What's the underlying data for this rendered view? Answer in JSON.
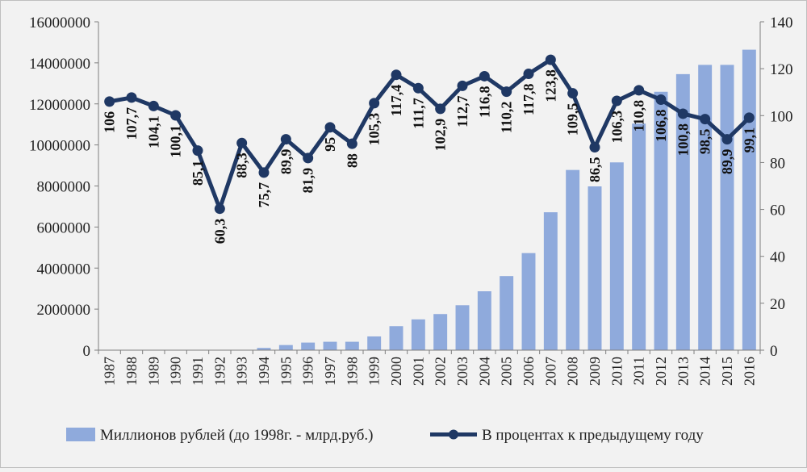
{
  "chart_data": {
    "type": "bar+line",
    "categories": [
      "1987",
      "1988",
      "1989",
      "1990",
      "1991",
      "1992",
      "1993",
      "1994",
      "1995",
      "1996",
      "1997",
      "1998",
      "1999",
      "2000",
      "2001",
      "2002",
      "2003",
      "2004",
      "2005",
      "2006",
      "2007",
      "2008",
      "2009",
      "2010",
      "2011",
      "2012",
      "2013",
      "2014",
      "2015",
      "2016"
    ],
    "series": [
      {
        "name": "Миллионов рублей (до 1998г. - млрд.руб.)",
        "type": "bar",
        "axis": "left",
        "color": "#8faadc",
        "values": [
          0,
          0,
          0,
          0,
          0,
          0,
          0,
          110000,
          250000,
          370000,
          410000,
          410000,
          670000,
          1170000,
          1500000,
          1760000,
          2190000,
          2870000,
          3610000,
          4730000,
          6720000,
          8780000,
          7980000,
          9150000,
          11040000,
          12590000,
          13450000,
          13900000,
          13900000,
          14640000
        ]
      },
      {
        "name": "В процентах к предыдущему году",
        "type": "line",
        "axis": "right",
        "color": "#1f3864",
        "values": [
          106,
          107.7,
          104.1,
          100.1,
          85.1,
          60.3,
          88.3,
          75.7,
          89.9,
          81.9,
          95,
          88,
          105.3,
          117.4,
          111.7,
          102.9,
          112.7,
          116.8,
          110.2,
          117.8,
          123.8,
          109.5,
          86.5,
          106.3,
          110.8,
          106.8,
          100.8,
          98.5,
          89.9,
          99.1
        ],
        "labels": [
          "106",
          "107,7",
          "104,1",
          "100,1",
          "85,1",
          "60,3",
          "88,3",
          "75,7",
          "89,9",
          "81,9",
          "95",
          "88",
          "105,3",
          "117,4",
          "111,7",
          "102,9",
          "112,7",
          "116,8",
          "110,2",
          "117,8",
          "123,8",
          "109,5",
          "86,5",
          "106,3",
          "110,8",
          "106,8",
          "100,8",
          "98,5",
          "89,9",
          "99,1"
        ]
      }
    ],
    "ylim_left": [
      0,
      16000000
    ],
    "yticks_left": [
      "0",
      "2000000",
      "4000000",
      "6000000",
      "8000000",
      "10000000",
      "12000000",
      "14000000",
      "16000000"
    ],
    "ylim_right": [
      0,
      140
    ],
    "yticks_right": [
      "0",
      "20",
      "40",
      "60",
      "80",
      "100",
      "120",
      "140"
    ],
    "grid": false,
    "legend": "bottom",
    "title": "",
    "xlabel": "",
    "ylabel": ""
  }
}
